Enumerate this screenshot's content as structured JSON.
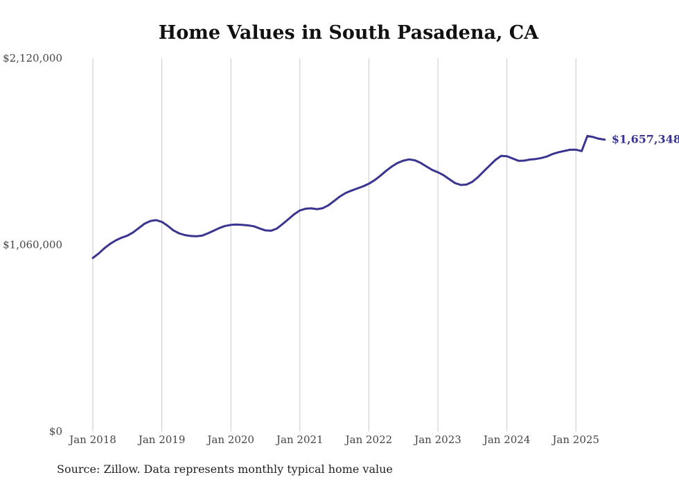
{
  "chart_data": {
    "type": "line",
    "title": "Home Values in South Pasadena, CA",
    "xlabel": "",
    "ylabel": "",
    "ylim": [
      0,
      2120000
    ],
    "y_ticks": [
      0,
      1060000,
      2120000
    ],
    "y_tick_labels": [
      "$0",
      "$1,060,000",
      "$2,120,000"
    ],
    "x_ticks": [
      "2018-01",
      "2019-01",
      "2020-01",
      "2021-01",
      "2022-01",
      "2023-01",
      "2024-01",
      "2025-01"
    ],
    "x_tick_labels": [
      "Jan 2018",
      "Jan 2019",
      "Jan 2020",
      "Jan 2021",
      "Jan 2022",
      "Jan 2023",
      "Jan 2024",
      "Jan 2025"
    ],
    "grid": "vertical",
    "line_color": "#3a3491",
    "end_label": "$1,657,348",
    "series": [
      {
        "x": [
          "2018-01",
          "2018-02",
          "2018-03",
          "2018-04",
          "2018-05",
          "2018-06",
          "2018-07",
          "2018-08",
          "2018-09",
          "2018-10",
          "2018-11",
          "2018-12",
          "2019-01",
          "2019-02",
          "2019-03",
          "2019-04",
          "2019-05",
          "2019-06",
          "2019-07",
          "2019-08",
          "2019-09",
          "2019-10",
          "2019-11",
          "2019-12",
          "2020-01",
          "2020-02",
          "2020-03",
          "2020-04",
          "2020-05",
          "2020-06",
          "2020-07",
          "2020-08",
          "2020-09",
          "2020-10",
          "2020-11",
          "2020-12",
          "2021-01",
          "2021-02",
          "2021-03",
          "2021-04",
          "2021-05",
          "2021-06",
          "2021-07",
          "2021-08",
          "2021-09",
          "2021-10",
          "2021-11",
          "2021-12",
          "2022-01",
          "2022-02",
          "2022-03",
          "2022-04",
          "2022-05",
          "2022-06",
          "2022-07",
          "2022-08",
          "2022-09",
          "2022-10",
          "2022-11",
          "2022-12",
          "2023-01",
          "2023-02",
          "2023-03",
          "2023-04",
          "2023-05",
          "2023-06",
          "2023-07",
          "2023-08",
          "2023-09",
          "2023-10",
          "2023-11",
          "2023-12",
          "2024-01",
          "2024-02",
          "2024-03",
          "2024-04",
          "2024-05",
          "2024-06",
          "2024-07",
          "2024-08",
          "2024-09",
          "2024-10",
          "2024-11",
          "2024-12",
          "2025-01",
          "2025-02",
          "2025-03",
          "2025-04",
          "2025-05",
          "2025-06"
        ],
        "values": [
          985000,
          1010000,
          1040000,
          1065000,
          1085000,
          1100000,
          1112000,
          1130000,
          1155000,
          1180000,
          1195000,
          1200000,
          1190000,
          1168000,
          1142000,
          1125000,
          1115000,
          1110000,
          1108000,
          1112000,
          1125000,
          1140000,
          1155000,
          1167000,
          1173000,
          1175000,
          1173000,
          1170000,
          1165000,
          1153000,
          1142000,
          1140000,
          1152000,
          1178000,
          1205000,
          1233000,
          1255000,
          1265000,
          1267000,
          1262000,
          1268000,
          1285000,
          1310000,
          1335000,
          1355000,
          1368000,
          1380000,
          1392000,
          1407000,
          1427000,
          1452000,
          1480000,
          1505000,
          1525000,
          1538000,
          1545000,
          1540000,
          1525000,
          1505000,
          1485000,
          1472000,
          1455000,
          1432000,
          1410000,
          1400000,
          1402000,
          1418000,
          1445000,
          1478000,
          1510000,
          1542000,
          1565000,
          1563000,
          1550000,
          1537000,
          1538000,
          1544000,
          1547000,
          1553000,
          1562000,
          1576000,
          1586000,
          1593000,
          1600000,
          1600000,
          1592000,
          1678000,
          1672000,
          1662000,
          1657348
        ]
      }
    ]
  },
  "source_note": "Source: Zillow. Data represents monthly typical home value"
}
